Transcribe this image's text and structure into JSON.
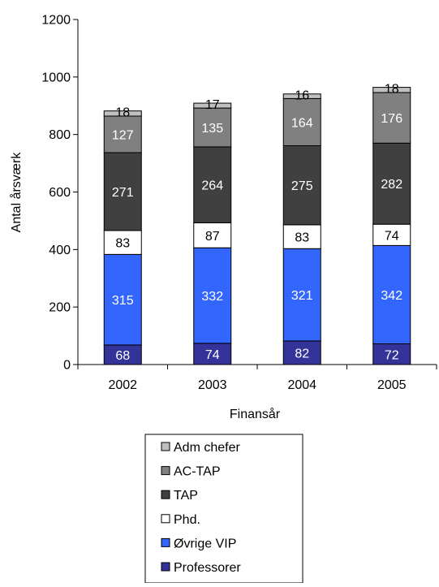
{
  "chart_data": {
    "type": "bar",
    "stacked": true,
    "categories": [
      "2002",
      "2003",
      "2004",
      "2005"
    ],
    "series": [
      {
        "name": "Professorer",
        "color": "#333399",
        "label_color": "#ffffff",
        "values": [
          68,
          74,
          82,
          72
        ]
      },
      {
        "name": "Øvrige VIP",
        "color": "#3366ff",
        "label_color": "#ffffff",
        "values": [
          315,
          332,
          321,
          342
        ]
      },
      {
        "name": "Phd.",
        "color": "#ffffff",
        "label_color": "#000000",
        "values": [
          83,
          87,
          83,
          74
        ]
      },
      {
        "name": "TAP",
        "color": "#404040",
        "label_color": "#ffffff",
        "values": [
          271,
          264,
          275,
          282
        ]
      },
      {
        "name": "AC-TAP",
        "color": "#808080",
        "label_color": "#ffffff",
        "values": [
          127,
          135,
          164,
          176
        ]
      },
      {
        "name": "Adm chefer",
        "color": "#c0c0c0",
        "label_color": "#000000",
        "values": [
          18,
          17,
          16,
          18
        ]
      }
    ],
    "xlabel": "Finansår",
    "ylabel": "Antal årsværk",
    "ylim": [
      0,
      1200
    ],
    "yticks": [
      0,
      200,
      400,
      600,
      800,
      1000,
      1200
    ],
    "grid": false,
    "legend_position": "bottom",
    "legend_order": [
      "Adm chefer",
      "AC-TAP",
      "TAP",
      "Phd.",
      "Øvrige VIP",
      "Professorer"
    ]
  }
}
